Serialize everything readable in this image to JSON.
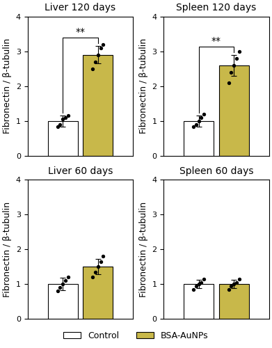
{
  "chart_data": [
    {
      "type": "bar",
      "title": "Liver 120 days",
      "ylabel": "Fibronectin / β-tubulin",
      "categories": [
        null
      ],
      "series": [
        {
          "name": "Control",
          "color": "#ffffff",
          "values": [
            1.0
          ],
          "errors": [
            0.15
          ],
          "points": [
            [
              0.85,
              0.9,
              1.05,
              1.1,
              1.15
            ]
          ]
        },
        {
          "name": "BSA-AuNPs",
          "color": "#c8b84a",
          "values": [
            2.9
          ],
          "errors": [
            0.25
          ],
          "points": [
            [
              2.5,
              2.7,
              2.9,
              3.1,
              3.2
            ]
          ]
        }
      ],
      "ylim": [
        0,
        4
      ],
      "yticks": [
        0,
        1,
        2,
        3,
        4
      ],
      "annotations": [
        "**"
      ],
      "legend": "lower center"
    },
    {
      "type": "bar",
      "title": "Spleen 120 days",
      "ylabel": "Fibronectin / β-tubulin",
      "categories": [
        null
      ],
      "series": [
        {
          "name": "Control",
          "color": "#ffffff",
          "values": [
            1.0
          ],
          "errors": [
            0.15
          ],
          "points": [
            [
              0.85,
              0.9,
              1.0,
              1.1,
              1.2
            ]
          ]
        },
        {
          "name": "BSA-AuNPs",
          "color": "#c8b84a",
          "values": [
            2.6
          ],
          "errors": [
            0.3
          ],
          "points": [
            [
              2.1,
              2.4,
              2.6,
              2.8,
              3.0
            ]
          ]
        }
      ],
      "ylim": [
        0,
        4
      ],
      "yticks": [
        0,
        1,
        2,
        3,
        4
      ],
      "annotations": [
        "**"
      ]
    },
    {
      "type": "bar",
      "title": "Liver 60 days",
      "ylabel": "Fibronectin / β-tubulin",
      "categories": [
        null
      ],
      "series": [
        {
          "name": "Control",
          "color": "#ffffff",
          "values": [
            1.0
          ],
          "errors": [
            0.18
          ],
          "points": [
            [
              0.8,
              0.9,
              1.0,
              1.1,
              1.2
            ]
          ]
        },
        {
          "name": "BSA-AuNPs",
          "color": "#c8b84a",
          "values": [
            1.5
          ],
          "errors": [
            0.22
          ],
          "points": [
            [
              1.2,
              1.35,
              1.5,
              1.65,
              1.8
            ]
          ]
        }
      ],
      "ylim": [
        0,
        4
      ],
      "yticks": [
        0,
        1,
        2,
        3,
        4
      ]
    },
    {
      "type": "bar",
      "title": "Spleen 60 days",
      "ylabel": "Fibronectin / β-tubulin",
      "categories": [
        null
      ],
      "series": [
        {
          "name": "Control",
          "color": "#ffffff",
          "values": [
            1.0
          ],
          "errors": [
            0.12
          ],
          "points": [
            [
              0.85,
              0.95,
              1.0,
              1.05,
              1.15
            ]
          ]
        },
        {
          "name": "BSA-AuNPs",
          "color": "#c8b84a",
          "values": [
            1.0
          ],
          "errors": [
            0.12
          ],
          "points": [
            [
              0.85,
              0.95,
              1.0,
              1.05,
              1.15
            ]
          ]
        }
      ],
      "ylim": [
        0,
        4
      ],
      "yticks": [
        0,
        1,
        2,
        3,
        4
      ]
    }
  ]
}
